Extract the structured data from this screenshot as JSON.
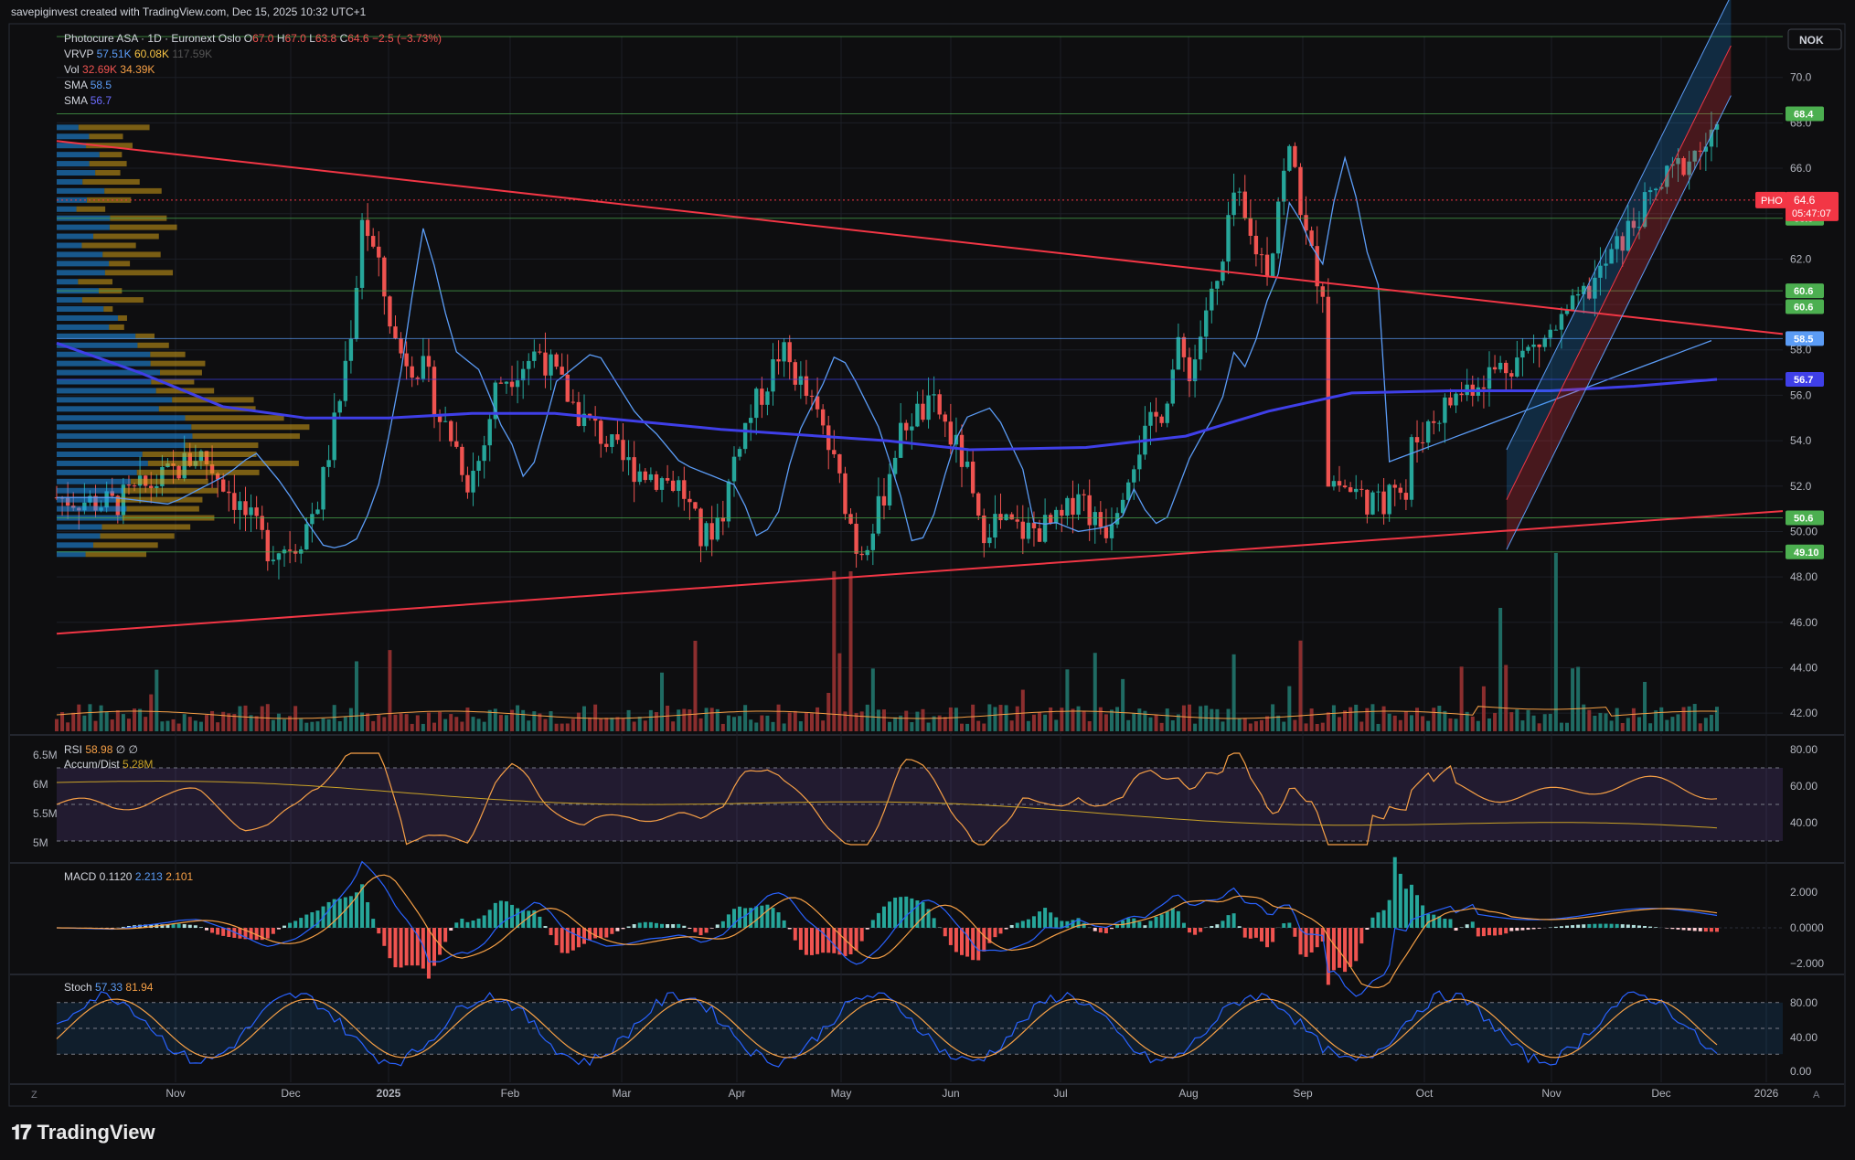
{
  "header": {
    "caption": "savepiginvest created with TradingView.com, Dec 15, 2025 10:32 UTC+1"
  },
  "footer": {
    "brand": "TradingView"
  },
  "currency_label": "NOK",
  "colors": {
    "up": "#26a69a",
    "down": "#ef5350",
    "bg": "#0e0e10",
    "sma_fast": "#5b9cf6",
    "sma_slow": "#3f3fe8",
    "trend": "#f23645",
    "level": "#4caf50",
    "vp_up": "#2196f3",
    "vp_down": "#d4a017"
  },
  "legend": {
    "symbol_line": {
      "name": "Photocure ASA · 1D · Euronext Oslo",
      "o_label": "O",
      "o": "67.0",
      "h_label": "H",
      "h": "67.0",
      "l_label": "L",
      "l": "63.8",
      "c_label": "C",
      "c": "64.6",
      "chg": "−2.5 (−3.73%)"
    },
    "vrvp": {
      "label": "VRVP",
      "v1": "57.51K",
      "v2": "60.08K",
      "v3": "117.59K"
    },
    "vol": {
      "label": "Vol",
      "v1": "32.69K",
      "v2": "34.39K"
    },
    "sma1": {
      "label": "SMA",
      "value": "58.5"
    },
    "sma2": {
      "label": "SMA",
      "value": "56.7"
    }
  },
  "price_badges": [
    {
      "value": "68.4",
      "price": 68.4,
      "color": "#4caf50"
    },
    {
      "value": "63.8",
      "price": 63.8,
      "color": "#4caf50"
    },
    {
      "value": "60.6",
      "price": 60.6,
      "color": "#4caf50"
    },
    {
      "value": "60.6",
      "price": 59.9,
      "color": "#4caf50"
    },
    {
      "value": "58.5",
      "price": 58.5,
      "color": "#5b9cf6"
    },
    {
      "value": "56.7",
      "price": 56.7,
      "color": "#3f3fe8"
    },
    {
      "value": "50.6",
      "price": 50.6,
      "color": "#4caf50"
    },
    {
      "value": "49.10",
      "price": 49.1,
      "color": "#4caf50"
    }
  ],
  "current": {
    "symbol": "PHO",
    "price": "64.6",
    "countdown": "05:47:07",
    "price_num": 64.6
  },
  "rsi_legend": {
    "label": "RSI",
    "value": "58.98",
    "extra": "∅ ∅",
    "ad_label": "Accum/Dist",
    "ad_value": "5.28M"
  },
  "macd_legend": {
    "label": "MACD",
    "v1": "0.1120",
    "v2": "2.213",
    "v3": "2.101"
  },
  "stoch_legend": {
    "label": "Stoch",
    "v1": "57.33",
    "v2": "81.94"
  },
  "left_scale_labels": [
    "6.5M",
    "6M",
    "5.5M",
    "5M"
  ],
  "axis_corner_left": "Z",
  "axis_corner_right": "A",
  "chart_data": {
    "type": "candlestick",
    "price_axis": {
      "ticks": [
        "70.0",
        "68.0",
        "66.0",
        "64.0",
        "62.0",
        "60.0",
        "58.0",
        "56.0",
        "54.0",
        "52.0",
        "50.00",
        "48.00",
        "46.00",
        "44.00",
        "42.00"
      ],
      "ylim": [
        41.2,
        71.8
      ]
    },
    "x_axis": {
      "labels": [
        "Nov",
        "Dec",
        "2025",
        "Feb",
        "Mar",
        "Apr",
        "May",
        "Jun",
        "Jul",
        "Aug",
        "Sep",
        "Oct",
        "Nov",
        "Dec",
        "2026"
      ]
    },
    "horizontal_levels": [
      71.8,
      68.4,
      63.8,
      60.6,
      58.5,
      56.7,
      50.6,
      49.1
    ],
    "trendlines": [
      {
        "name": "descending",
        "from": [
          0,
          67.2
        ],
        "to": [
          1.0,
          58.7
        ]
      },
      {
        "name": "ascending",
        "from": [
          0,
          45.5
        ],
        "to": [
          1.0,
          50.9
        ]
      }
    ],
    "channel": {
      "start": [
        0.84,
        49.2
      ],
      "end": [
        0.97,
        69.2
      ],
      "width": 4.4
    },
    "rsi_axis": {
      "ticks": [
        "80.00",
        "60.00",
        "40.00"
      ],
      "upper": 70,
      "lower": 30
    },
    "macd_axis": {
      "ticks": [
        "2.000",
        "0.0000",
        "−2.000"
      ]
    },
    "stoch_axis": {
      "ticks": [
        "80.00",
        "40.00",
        "0.00"
      ],
      "upper": 80,
      "lower": 20
    }
  }
}
